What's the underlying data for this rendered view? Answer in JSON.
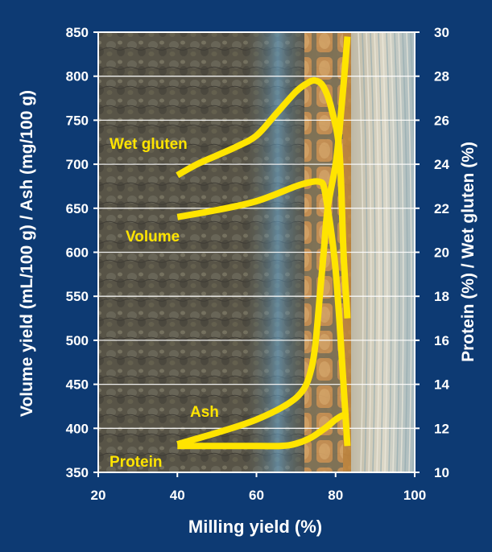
{
  "chart_data": {
    "type": "line",
    "xlabel": "Milling yield (%)",
    "ylabel_left": "Volume yield (mL/100 g) / Ash (mg/100 g)",
    "ylabel_right": "Protein (%) /  Wet gluten (%)",
    "xlim": [
      20,
      100
    ],
    "ylim_left": [
      350,
      850
    ],
    "ylim_right": [
      10,
      30
    ],
    "x_ticks": [
      "20",
      "40",
      "60",
      "80",
      "100"
    ],
    "y_left_ticks": [
      "350",
      "400",
      "450",
      "500",
      "550",
      "600",
      "650",
      "700",
      "750",
      "800",
      "850"
    ],
    "y_right_ticks": [
      "10",
      "12",
      "14",
      "16",
      "18",
      "20",
      "22",
      "24",
      "26",
      "28",
      "30"
    ],
    "grid": "horizontal",
    "series_color": "#ffe400",
    "series": [
      {
        "name": "Wet gluten",
        "axis": "right",
        "x": [
          40,
          45,
          50,
          55,
          60,
          65,
          70,
          73,
          75,
          77,
          79,
          81,
          82,
          83
        ],
        "y": [
          23.5,
          24.0,
          24.4,
          24.8,
          25.3,
          26.3,
          27.3,
          27.7,
          27.8,
          27.5,
          26.5,
          24.5,
          20.0,
          17.0
        ]
      },
      {
        "name": "Volume",
        "axis": "left",
        "x": [
          40,
          50,
          60,
          70,
          74,
          76,
          77,
          78,
          79,
          80,
          81,
          82,
          83
        ],
        "y": [
          640,
          648,
          658,
          675,
          680,
          680,
          675,
          650,
          620,
          580,
          520,
          450,
          380
        ]
      },
      {
        "name": "Ash",
        "axis": "left",
        "x": [
          40,
          50,
          60,
          68,
          72,
          74,
          75,
          76,
          77,
          78,
          80,
          81,
          82,
          83
        ],
        "y": [
          382,
          395,
          410,
          428,
          445,
          470,
          500,
          550,
          600,
          650,
          700,
          740,
          790,
          845
        ]
      },
      {
        "name": "Protein",
        "axis": "right",
        "x": [
          40,
          50,
          58,
          66,
          70,
          74,
          78,
          80,
          82,
          83
        ],
        "y": [
          11.2,
          11.2,
          11.2,
          11.2,
          11.3,
          11.6,
          12.1,
          12.4,
          12.6,
          12.5
        ]
      }
    ],
    "labels": [
      {
        "text": "Wet gluten",
        "series": "Wet gluten"
      },
      {
        "text": "Volume",
        "series": "Volume"
      },
      {
        "text": "Ash",
        "series": "Ash"
      },
      {
        "text": "Protein",
        "series": "Protein"
      }
    ]
  }
}
